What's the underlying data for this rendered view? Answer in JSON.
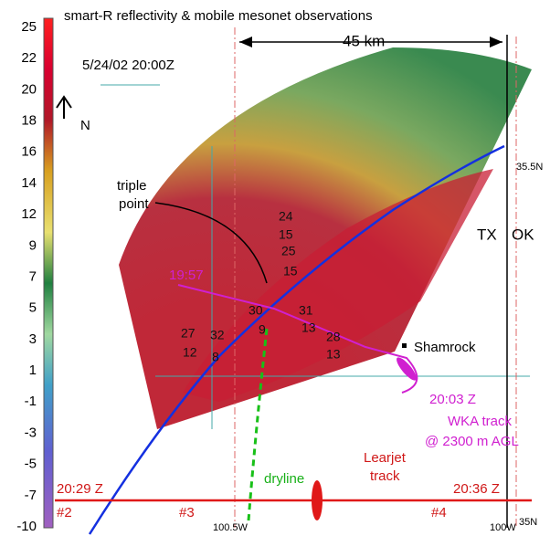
{
  "title": "smart-R reflectivity & mobile mesonet observations",
  "colorbar": {
    "ticks": [
      25,
      22,
      20,
      18,
      16,
      14,
      12,
      9,
      7,
      5,
      3,
      1,
      -1,
      -3,
      -5,
      -7,
      -10
    ]
  },
  "map": {
    "datetime": "5/24/02 20:00Z",
    "north": "N",
    "scale": "45 km",
    "lat_labels": [
      "35.5N",
      "35N"
    ],
    "lon_labels": [
      "100.5W",
      "100W"
    ],
    "states": [
      "TX",
      "OK"
    ],
    "triple_point": [
      "triple",
      "point"
    ],
    "town": "Shamrock",
    "dryline": "dryline",
    "wka": {
      "start": "19:57",
      "end": "20:03 Z",
      "label": [
        "WKA track",
        "@ 2300 m AGL"
      ]
    },
    "learjet": {
      "label": [
        "Learjet",
        "track"
      ],
      "start": "20:29 Z",
      "end": "20:36 Z",
      "legs": [
        "#2",
        "#3",
        "#4"
      ]
    },
    "wind_obs": [
      "24",
      "15",
      "25",
      "15",
      "30",
      "31",
      "27",
      "32",
      "9",
      "13",
      "28",
      "12",
      "8",
      "13"
    ]
  }
}
